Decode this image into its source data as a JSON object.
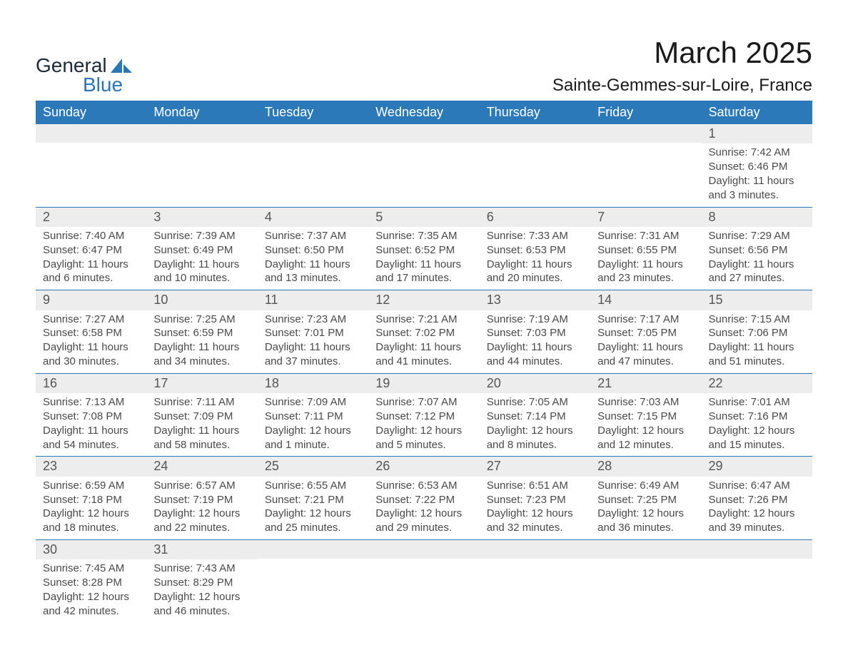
{
  "brand": {
    "name_general": "General",
    "name_blue": "Blue",
    "text_color_general": "#1c2a3a",
    "text_color_blue": "#2a76b8",
    "shape_color": "#2a76b8"
  },
  "title": {
    "month": "March 2025",
    "location": "Sainte-Gemmes-sur-Loire, France",
    "month_fontsize": 42,
    "location_fontsize": 24,
    "text_color": "#1a1a1a"
  },
  "calendar": {
    "header_bg": "#2b79b9",
    "header_text_color": "#ffffff",
    "row_divider_color": "#2b79b9",
    "daynum_bg": "#ededed",
    "daynum_color": "#555555",
    "body_text_color": "#4a4a4a",
    "day_names": [
      "Sunday",
      "Monday",
      "Tuesday",
      "Wednesday",
      "Thursday",
      "Friday",
      "Saturday"
    ],
    "weeks": [
      [
        {
          "n": "",
          "sr": "",
          "ss": "",
          "d1": "",
          "d2": ""
        },
        {
          "n": "",
          "sr": "",
          "ss": "",
          "d1": "",
          "d2": ""
        },
        {
          "n": "",
          "sr": "",
          "ss": "",
          "d1": "",
          "d2": ""
        },
        {
          "n": "",
          "sr": "",
          "ss": "",
          "d1": "",
          "d2": ""
        },
        {
          "n": "",
          "sr": "",
          "ss": "",
          "d1": "",
          "d2": ""
        },
        {
          "n": "",
          "sr": "",
          "ss": "",
          "d1": "",
          "d2": ""
        },
        {
          "n": "1",
          "sr": "Sunrise: 7:42 AM",
          "ss": "Sunset: 6:46 PM",
          "d1": "Daylight: 11 hours",
          "d2": "and 3 minutes."
        }
      ],
      [
        {
          "n": "2",
          "sr": "Sunrise: 7:40 AM",
          "ss": "Sunset: 6:47 PM",
          "d1": "Daylight: 11 hours",
          "d2": "and 6 minutes."
        },
        {
          "n": "3",
          "sr": "Sunrise: 7:39 AM",
          "ss": "Sunset: 6:49 PM",
          "d1": "Daylight: 11 hours",
          "d2": "and 10 minutes."
        },
        {
          "n": "4",
          "sr": "Sunrise: 7:37 AM",
          "ss": "Sunset: 6:50 PM",
          "d1": "Daylight: 11 hours",
          "d2": "and 13 minutes."
        },
        {
          "n": "5",
          "sr": "Sunrise: 7:35 AM",
          "ss": "Sunset: 6:52 PM",
          "d1": "Daylight: 11 hours",
          "d2": "and 17 minutes."
        },
        {
          "n": "6",
          "sr": "Sunrise: 7:33 AM",
          "ss": "Sunset: 6:53 PM",
          "d1": "Daylight: 11 hours",
          "d2": "and 20 minutes."
        },
        {
          "n": "7",
          "sr": "Sunrise: 7:31 AM",
          "ss": "Sunset: 6:55 PM",
          "d1": "Daylight: 11 hours",
          "d2": "and 23 minutes."
        },
        {
          "n": "8",
          "sr": "Sunrise: 7:29 AM",
          "ss": "Sunset: 6:56 PM",
          "d1": "Daylight: 11 hours",
          "d2": "and 27 minutes."
        }
      ],
      [
        {
          "n": "9",
          "sr": "Sunrise: 7:27 AM",
          "ss": "Sunset: 6:58 PM",
          "d1": "Daylight: 11 hours",
          "d2": "and 30 minutes."
        },
        {
          "n": "10",
          "sr": "Sunrise: 7:25 AM",
          "ss": "Sunset: 6:59 PM",
          "d1": "Daylight: 11 hours",
          "d2": "and 34 minutes."
        },
        {
          "n": "11",
          "sr": "Sunrise: 7:23 AM",
          "ss": "Sunset: 7:01 PM",
          "d1": "Daylight: 11 hours",
          "d2": "and 37 minutes."
        },
        {
          "n": "12",
          "sr": "Sunrise: 7:21 AM",
          "ss": "Sunset: 7:02 PM",
          "d1": "Daylight: 11 hours",
          "d2": "and 41 minutes."
        },
        {
          "n": "13",
          "sr": "Sunrise: 7:19 AM",
          "ss": "Sunset: 7:03 PM",
          "d1": "Daylight: 11 hours",
          "d2": "and 44 minutes."
        },
        {
          "n": "14",
          "sr": "Sunrise: 7:17 AM",
          "ss": "Sunset: 7:05 PM",
          "d1": "Daylight: 11 hours",
          "d2": "and 47 minutes."
        },
        {
          "n": "15",
          "sr": "Sunrise: 7:15 AM",
          "ss": "Sunset: 7:06 PM",
          "d1": "Daylight: 11 hours",
          "d2": "and 51 minutes."
        }
      ],
      [
        {
          "n": "16",
          "sr": "Sunrise: 7:13 AM",
          "ss": "Sunset: 7:08 PM",
          "d1": "Daylight: 11 hours",
          "d2": "and 54 minutes."
        },
        {
          "n": "17",
          "sr": "Sunrise: 7:11 AM",
          "ss": "Sunset: 7:09 PM",
          "d1": "Daylight: 11 hours",
          "d2": "and 58 minutes."
        },
        {
          "n": "18",
          "sr": "Sunrise: 7:09 AM",
          "ss": "Sunset: 7:11 PM",
          "d1": "Daylight: 12 hours",
          "d2": "and 1 minute."
        },
        {
          "n": "19",
          "sr": "Sunrise: 7:07 AM",
          "ss": "Sunset: 7:12 PM",
          "d1": "Daylight: 12 hours",
          "d2": "and 5 minutes."
        },
        {
          "n": "20",
          "sr": "Sunrise: 7:05 AM",
          "ss": "Sunset: 7:14 PM",
          "d1": "Daylight: 12 hours",
          "d2": "and 8 minutes."
        },
        {
          "n": "21",
          "sr": "Sunrise: 7:03 AM",
          "ss": "Sunset: 7:15 PM",
          "d1": "Daylight: 12 hours",
          "d2": "and 12 minutes."
        },
        {
          "n": "22",
          "sr": "Sunrise: 7:01 AM",
          "ss": "Sunset: 7:16 PM",
          "d1": "Daylight: 12 hours",
          "d2": "and 15 minutes."
        }
      ],
      [
        {
          "n": "23",
          "sr": "Sunrise: 6:59 AM",
          "ss": "Sunset: 7:18 PM",
          "d1": "Daylight: 12 hours",
          "d2": "and 18 minutes."
        },
        {
          "n": "24",
          "sr": "Sunrise: 6:57 AM",
          "ss": "Sunset: 7:19 PM",
          "d1": "Daylight: 12 hours",
          "d2": "and 22 minutes."
        },
        {
          "n": "25",
          "sr": "Sunrise: 6:55 AM",
          "ss": "Sunset: 7:21 PM",
          "d1": "Daylight: 12 hours",
          "d2": "and 25 minutes."
        },
        {
          "n": "26",
          "sr": "Sunrise: 6:53 AM",
          "ss": "Sunset: 7:22 PM",
          "d1": "Daylight: 12 hours",
          "d2": "and 29 minutes."
        },
        {
          "n": "27",
          "sr": "Sunrise: 6:51 AM",
          "ss": "Sunset: 7:23 PM",
          "d1": "Daylight: 12 hours",
          "d2": "and 32 minutes."
        },
        {
          "n": "28",
          "sr": "Sunrise: 6:49 AM",
          "ss": "Sunset: 7:25 PM",
          "d1": "Daylight: 12 hours",
          "d2": "and 36 minutes."
        },
        {
          "n": "29",
          "sr": "Sunrise: 6:47 AM",
          "ss": "Sunset: 7:26 PM",
          "d1": "Daylight: 12 hours",
          "d2": "and 39 minutes."
        }
      ],
      [
        {
          "n": "30",
          "sr": "Sunrise: 7:45 AM",
          "ss": "Sunset: 8:28 PM",
          "d1": "Daylight: 12 hours",
          "d2": "and 42 minutes."
        },
        {
          "n": "31",
          "sr": "Sunrise: 7:43 AM",
          "ss": "Sunset: 8:29 PM",
          "d1": "Daylight: 12 hours",
          "d2": "and 46 minutes."
        },
        {
          "n": "",
          "sr": "",
          "ss": "",
          "d1": "",
          "d2": ""
        },
        {
          "n": "",
          "sr": "",
          "ss": "",
          "d1": "",
          "d2": ""
        },
        {
          "n": "",
          "sr": "",
          "ss": "",
          "d1": "",
          "d2": ""
        },
        {
          "n": "",
          "sr": "",
          "ss": "",
          "d1": "",
          "d2": ""
        },
        {
          "n": "",
          "sr": "",
          "ss": "",
          "d1": "",
          "d2": ""
        }
      ]
    ]
  }
}
